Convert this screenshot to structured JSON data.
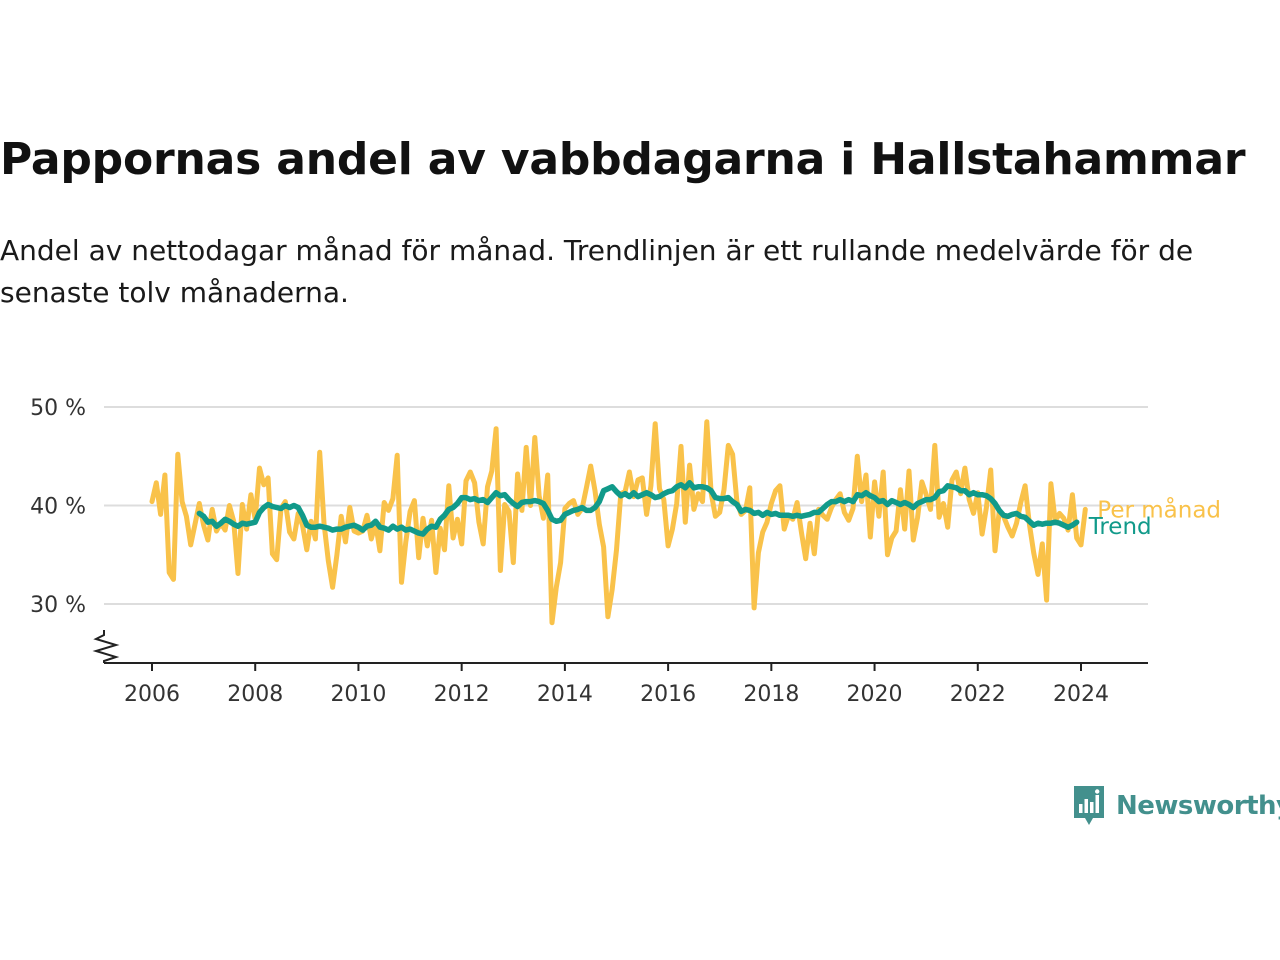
{
  "title": "Pappornas andel av vabbdagarna i Hallstahammar",
  "subtitle": "Andel av nettodagar månad för månad. Trendlinjen är ett rullande medelvärde för de senaste tolv månaderna.",
  "brand": {
    "name": "Newsworthy",
    "icon": "newsworthy-logo-icon"
  },
  "colors": {
    "monthly": "#f9c24a",
    "trend": "#119a8a",
    "grid": "#dddddd",
    "axis": "#222222",
    "brand": "#43908d"
  },
  "chart_data": {
    "type": "line",
    "title": "Pappornas andel av vabbdagarna i Hallstahammar",
    "x_unit": "year (decimal, monthly)",
    "x_start": 2006.0,
    "x_step": 0.083333,
    "xlim": [
      2005.0,
      2025.25
    ],
    "ylim": [
      24,
      51
    ],
    "y_ticks": [
      30,
      40,
      50
    ],
    "y_tick_labels": [
      "30 %",
      "40 %",
      "50 %"
    ],
    "x_ticks": [
      2006,
      2008,
      2010,
      2012,
      2014,
      2016,
      2018,
      2020,
      2022,
      2024
    ],
    "x_tick_labels": [
      "2006",
      "2008",
      "2010",
      "2012",
      "2014",
      "2016",
      "2018",
      "2020",
      "2022",
      "2024"
    ],
    "axis_break": true,
    "grid": "horizontal",
    "legend": "inline labels at line ends",
    "series": [
      {
        "name": "Per månad",
        "color": "#f9c24a",
        "values": [
          40.4,
          42.3,
          39.1,
          43.1,
          33.2,
          32.5,
          45.2,
          40.4,
          38.9,
          36.0,
          38.1,
          40.2,
          38.0,
          36.5,
          39.6,
          37.4,
          38.2,
          37.5,
          40.0,
          38.4,
          33.1,
          40.1,
          37.6,
          41.1,
          38.6,
          43.8,
          42.1,
          42.8,
          35.1,
          34.5,
          39.7,
          40.4,
          37.3,
          36.6,
          39.2,
          38.0,
          35.5,
          38.4,
          36.6,
          45.4,
          38.2,
          34.4,
          31.7,
          35.0,
          38.9,
          36.3,
          39.8,
          37.4,
          37.2,
          37.4,
          39.0,
          36.6,
          38.2,
          35.4,
          40.3,
          39.5,
          40.7,
          45.1,
          32.2,
          36.3,
          39.4,
          40.5,
          34.7,
          38.7,
          35.9,
          38.5,
          33.2,
          37.7,
          35.5,
          42.0,
          36.7,
          38.6,
          36.1,
          42.5,
          43.4,
          42.3,
          38.3,
          36.1,
          41.9,
          43.5,
          47.8,
          33.4,
          40.1,
          39.4,
          34.2,
          43.2,
          39.5,
          45.9,
          40.0,
          46.9,
          41.0,
          38.7,
          43.1,
          28.1,
          31.7,
          34.2,
          39.7,
          40.2,
          40.5,
          39.1,
          39.7,
          41.8,
          44.0,
          41.5,
          38.1,
          35.8,
          28.7,
          31.5,
          35.5,
          41.2,
          41.4,
          43.4,
          40.9,
          42.6,
          42.8,
          39.1,
          42.0,
          48.3,
          41.7,
          40.6,
          35.9,
          37.6,
          40.2,
          46.0,
          38.3,
          44.1,
          39.6,
          41.2,
          40.4,
          48.5,
          41.3,
          38.9,
          39.3,
          41.6,
          46.1,
          45.2,
          40.4,
          39.1,
          39.5,
          41.8,
          29.6,
          35.2,
          37.3,
          38.3,
          40.2,
          41.5,
          42.0,
          37.6,
          39.0,
          38.6,
          40.3,
          37.3,
          34.6,
          38.2,
          35.1,
          39.6,
          39.0,
          38.6,
          39.8,
          40.6,
          41.2,
          39.3,
          38.5,
          39.7,
          45.0,
          40.4,
          43.1,
          36.8,
          42.4,
          38.9,
          43.4,
          35.0,
          36.7,
          37.4,
          41.6,
          37.6,
          43.5,
          36.5,
          38.8,
          42.4,
          41.1,
          39.6,
          46.1,
          38.8,
          40.2,
          37.8,
          42.6,
          43.4,
          41.2,
          43.8,
          40.6,
          39.2,
          41.3,
          37.1,
          39.8,
          43.6,
          35.4,
          39.5,
          38.9,
          37.8,
          36.9,
          38.2,
          40.3,
          42.0,
          38.1,
          35.2,
          33.0,
          36.1,
          30.4,
          42.2,
          38.4,
          39.2,
          38.7,
          37.5,
          41.1,
          36.7,
          36.0,
          39.6
        ]
      },
      {
        "name": "Trend",
        "color": "#119a8a",
        "x_start": 2006.9167,
        "values": [
          39.2,
          38.9,
          38.3,
          38.4,
          37.9,
          38.2,
          38.6,
          38.4,
          38.1,
          37.9,
          38.2,
          38.1,
          38.2,
          38.3,
          39.3,
          39.8,
          40.1,
          39.9,
          39.8,
          39.7,
          40.0,
          39.8,
          40.0,
          39.8,
          39.0,
          38.0,
          37.8,
          37.8,
          37.9,
          37.8,
          37.7,
          37.5,
          37.6,
          37.6,
          37.8,
          37.9,
          38.0,
          37.8,
          37.5,
          37.9,
          38.0,
          38.4,
          37.8,
          37.7,
          37.5,
          37.9,
          37.6,
          37.8,
          37.5,
          37.6,
          37.4,
          37.2,
          37.1,
          37.6,
          37.9,
          37.8,
          38.6,
          39.0,
          39.6,
          39.8,
          40.2,
          40.8,
          40.8,
          40.6,
          40.7,
          40.5,
          40.6,
          40.3,
          40.8,
          41.3,
          41.0,
          41.1,
          40.6,
          40.2,
          39.9,
          40.3,
          40.4,
          40.4,
          40.5,
          40.4,
          40.2,
          39.5,
          38.6,
          38.4,
          38.5,
          39.1,
          39.3,
          39.5,
          39.6,
          39.8,
          39.5,
          39.5,
          39.8,
          40.4,
          41.5,
          41.7,
          41.9,
          41.4,
          41.0,
          41.2,
          40.9,
          41.3,
          40.9,
          41.1,
          41.3,
          41.1,
          40.8,
          40.9,
          41.2,
          41.4,
          41.5,
          41.9,
          42.1,
          41.8,
          42.3,
          41.8,
          41.9,
          41.9,
          41.8,
          41.5,
          40.8,
          40.7,
          40.7,
          40.8,
          40.4,
          40.1,
          39.4,
          39.6,
          39.5,
          39.2,
          39.3,
          39.0,
          39.3,
          39.1,
          39.2,
          39.0,
          39.0,
          39.0,
          38.9,
          39.0,
          38.9,
          39.0,
          39.1,
          39.3,
          39.3,
          39.7,
          40.1,
          40.4,
          40.4,
          40.6,
          40.4,
          40.6,
          40.4,
          41.1,
          41.0,
          41.3,
          41.0,
          40.8,
          40.4,
          40.5,
          40.1,
          40.5,
          40.3,
          40.1,
          40.3,
          40.1,
          39.8,
          40.2,
          40.4,
          40.6,
          40.6,
          40.8,
          41.4,
          41.5,
          42.0,
          41.9,
          41.8,
          41.5,
          41.5,
          41.1,
          41.3,
          41.1,
          41.1,
          41.0,
          40.7,
          40.2,
          39.5,
          39.0,
          38.9,
          39.1,
          39.2,
          38.9,
          38.8,
          38.4,
          38.0,
          38.2,
          38.1,
          38.2,
          38.2,
          38.3,
          38.2,
          38.0,
          37.8,
          38.0,
          38.3
        ]
      }
    ],
    "series_labels": [
      "Per månad",
      "Trend"
    ]
  }
}
